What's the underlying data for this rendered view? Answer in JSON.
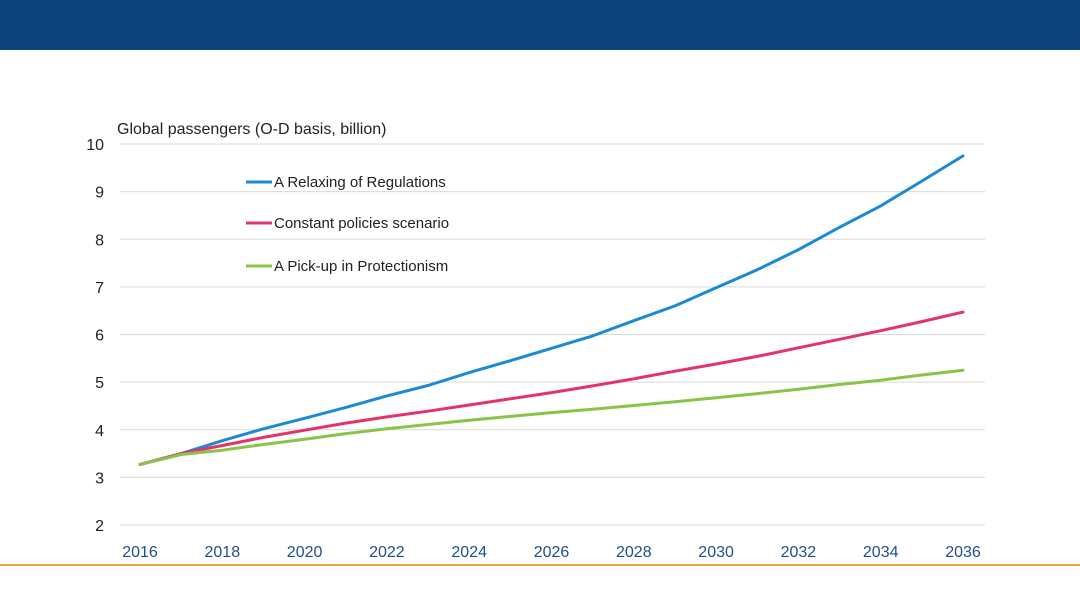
{
  "chart_data": {
    "type": "line",
    "title": "",
    "ylabel": "Global passengers (O-D basis, billion)",
    "xlabel": "",
    "xlim": [
      2016,
      2036
    ],
    "ylim": [
      2,
      10
    ],
    "x_ticks": [
      2016,
      2018,
      2020,
      2022,
      2024,
      2026,
      2028,
      2030,
      2032,
      2034,
      2036
    ],
    "y_ticks": [
      2,
      3,
      4,
      5,
      6,
      7,
      8,
      9,
      10
    ],
    "grid": "horizontal",
    "legend_position": "top-left",
    "x": [
      2016,
      2017,
      2018,
      2019,
      2020,
      2021,
      2022,
      2023,
      2024,
      2025,
      2026,
      2027,
      2028,
      2029,
      2030,
      2031,
      2032,
      2033,
      2034,
      2035,
      2036
    ],
    "series": [
      {
        "name": "A Relaxing of Regulations",
        "color": "#1b8ad3",
        "values": [
          3.27,
          3.5,
          3.77,
          4.02,
          4.24,
          4.47,
          4.71,
          4.93,
          5.2,
          5.45,
          5.71,
          5.97,
          6.29,
          6.6,
          6.98,
          7.36,
          7.78,
          8.25,
          8.7,
          9.22,
          9.75
        ]
      },
      {
        "name": "Constant policies scenario",
        "color": "#e2336b",
        "values": [
          3.27,
          3.5,
          3.67,
          3.84,
          3.99,
          4.14,
          4.27,
          4.39,
          4.52,
          4.65,
          4.78,
          4.92,
          5.07,
          5.23,
          5.38,
          5.54,
          5.72,
          5.9,
          6.08,
          6.27,
          6.47
        ]
      },
      {
        "name": "A Pick-up in Protectionism",
        "color": "#8bc34a",
        "values": [
          3.27,
          3.48,
          3.57,
          3.69,
          3.8,
          3.92,
          4.02,
          4.11,
          4.2,
          4.28,
          4.36,
          4.43,
          4.51,
          4.59,
          4.67,
          4.76,
          4.85,
          4.95,
          5.04,
          5.15,
          5.25
        ]
      }
    ]
  }
}
